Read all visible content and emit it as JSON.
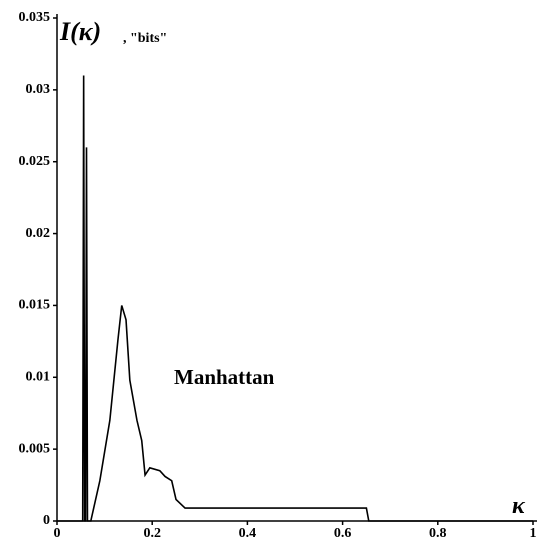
{
  "chart_data": {
    "type": "line",
    "y_label": "I(κ)",
    "y_unit": ", \"bits\"",
    "x_label": "κ",
    "annotation": "Manhattan",
    "color": "#000000",
    "x": [
      0,
      0.054,
      0.056,
      0.058,
      0.06,
      0.062,
      0.064,
      0.066,
      0.071,
      0.09,
      0.111,
      0.128,
      0.136,
      0.145,
      0.153,
      0.168,
      0.178,
      0.185,
      0.195,
      0.216,
      0.227,
      0.241,
      0.25,
      0.269,
      0.65,
      0.655,
      1
    ],
    "values": [
      0,
      0,
      0.031,
      0,
      0,
      0.026,
      0,
      0,
      0,
      0.0028,
      0.007,
      0.0126,
      0.015,
      0.014,
      0.0098,
      0.007,
      0.0056,
      0.0032,
      0.0037,
      0.0035,
      0.0031,
      0.0028,
      0.0015,
      0.0009,
      0.0009,
      0,
      0
    ],
    "xlim": [
      0,
      1
    ],
    "ylim": [
      0,
      0.035
    ],
    "xticks": [
      0,
      0.2,
      0.4,
      0.6,
      0.8,
      1
    ],
    "yticks": [
      0,
      0.005,
      0.01,
      0.015,
      0.02,
      0.025,
      0.03,
      0.035
    ]
  }
}
